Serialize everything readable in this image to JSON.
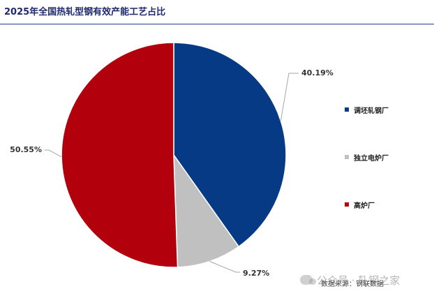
{
  "header": {
    "title": "2025年全国热轧型钢有效产能工艺占比"
  },
  "chart_data": {
    "type": "pie",
    "title": "2025年全国热轧型钢有效产能工艺占比",
    "categories": [
      "调坯轧钢厂",
      "独立电炉厂",
      "高炉厂"
    ],
    "values": [
      40.19,
      9.27,
      50.55
    ],
    "value_labels": [
      "40.19%",
      "9.27%",
      "50.55%"
    ],
    "colors": [
      "#063a85",
      "#c0c0c0",
      "#b2000d"
    ],
    "legend_position": "right",
    "start_angle": "12 o'clock",
    "direction": "clockwise"
  },
  "legend": {
    "items": [
      {
        "label": "调坯轧钢厂",
        "color": "#063a85"
      },
      {
        "label": "独立电炉厂",
        "color": "#c0c0c0"
      },
      {
        "label": "高炉厂",
        "color": "#b2000d"
      }
    ]
  },
  "footer": {
    "source": "数据来源：钢联数据",
    "watermark": "公众号 · 轧钢之家"
  }
}
